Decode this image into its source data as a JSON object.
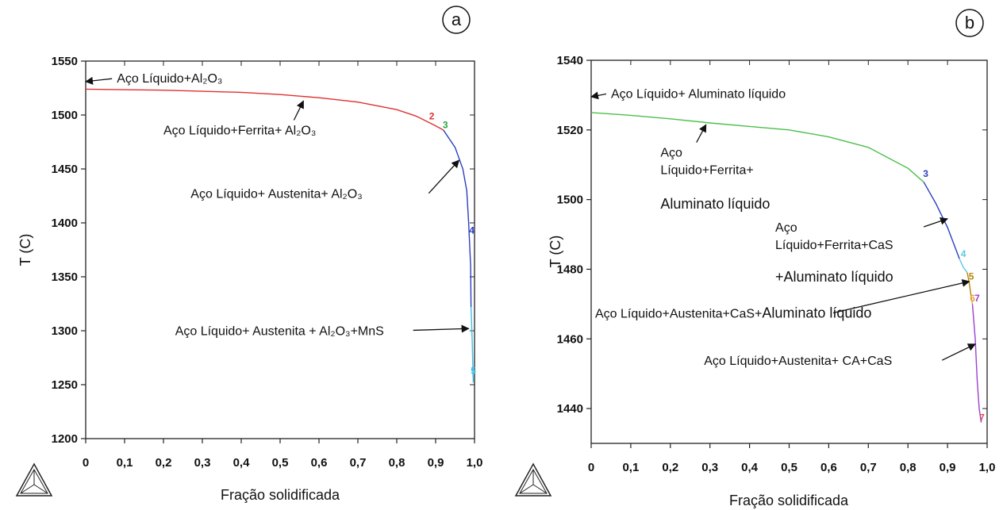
{
  "chart_data": [
    {
      "type": "line",
      "badge": "a",
      "xlabel": "Fração solidificada",
      "ylabel": "T (C)",
      "xlim": [
        0,
        1.0
      ],
      "ylim": [
        1200,
        1550
      ],
      "xticks": [
        "0",
        "0,1",
        "0,2",
        "0,3",
        "0,4",
        "0,5",
        "0,6",
        "0,7",
        "0,8",
        "0,9",
        "1,0"
      ],
      "yticks": [
        1200,
        1250,
        1300,
        1350,
        1400,
        1450,
        1500,
        1550
      ],
      "series": [
        {
          "color": "#e03030",
          "x": [
            0,
            0.2,
            0.4,
            0.5,
            0.6,
            0.7,
            0.8,
            0.85,
            0.9,
            0.92
          ],
          "y": [
            1524,
            1523,
            1521,
            1519,
            1516,
            1512,
            1505,
            1499,
            1490,
            1486
          ]
        },
        {
          "color": "#2a3fbf",
          "x": [
            0.92,
            0.95,
            0.97,
            0.98,
            0.985,
            0.99,
            0.991
          ],
          "y": [
            1486,
            1470,
            1450,
            1430,
            1400,
            1360,
            1322
          ]
        },
        {
          "color": "#3bbfe8",
          "x": [
            0.991,
            0.994,
            0.996,
            0.997
          ],
          "y": [
            1322,
            1290,
            1262,
            1252
          ]
        }
      ],
      "points": [
        {
          "label": "2",
          "x": 0.89,
          "y": 1496,
          "color": "#e03030"
        },
        {
          "label": "3",
          "x": 0.925,
          "y": 1488,
          "color": "#2ea043"
        },
        {
          "label": "4",
          "x": 0.993,
          "y": 1390,
          "color": "#2a3fbf"
        },
        {
          "label": "5",
          "x": 0.997,
          "y": 1260,
          "color": "#3bbfe8"
        }
      ],
      "annotations": [
        {
          "text": "Aço Líquido+Al₂O₃",
          "tx": 0.08,
          "ty": 1530,
          "ax": 0.0,
          "ay": 1531
        },
        {
          "text": "Aço Líquido+Ferrita+ Al₂O₃",
          "tx": 0.2,
          "ty": 1482,
          "ax": 0.56,
          "ay": 1513
        },
        {
          "text": "Aço Líquido+ Austenita+ Al₂O₃",
          "tx": 0.27,
          "ty": 1423,
          "ax": 0.96,
          "ay": 1458
        },
        {
          "text": "Aço Líquido+ Austenita + Al₂O₃+MnS",
          "tx": 0.23,
          "ty": 1296,
          "ax": 0.985,
          "ay": 1302
        }
      ]
    },
    {
      "type": "line",
      "badge": "b",
      "xlabel": "Fração solidificada",
      "ylabel": "T (C)",
      "xlim": [
        0,
        1.0
      ],
      "ylim": [
        1430,
        1540
      ],
      "xticks": [
        "0",
        "0,1",
        "0,2",
        "0,3",
        "0,4",
        "0,5",
        "0,6",
        "0,7",
        "0,8",
        "0,9",
        "1,0"
      ],
      "yticks": [
        1440,
        1460,
        1480,
        1500,
        1520,
        1540
      ],
      "series": [
        {
          "color": "#4cbf4c",
          "x": [
            0,
            0.1,
            0.2,
            0.3,
            0.4,
            0.5,
            0.6,
            0.7,
            0.8,
            0.84
          ],
          "y": [
            1525,
            1524.2,
            1523.2,
            1522,
            1521,
            1520,
            1518,
            1515,
            1509,
            1505
          ]
        },
        {
          "color": "#2a3fbf",
          "x": [
            0.84,
            0.87,
            0.9,
            0.92,
            0.93
          ],
          "y": [
            1505,
            1499,
            1492,
            1486,
            1483
          ]
        },
        {
          "color": "#5bc8e6",
          "x": [
            0.93,
            0.94,
            0.95
          ],
          "y": [
            1483,
            1480.5,
            1479
          ]
        },
        {
          "color": "#b8860b",
          "x": [
            0.95,
            0.955,
            0.96
          ],
          "y": [
            1479,
            1476,
            1472
          ]
        },
        {
          "color": "#e8a040",
          "x": [
            0.96,
            0.963
          ],
          "y": [
            1472,
            1470
          ]
        },
        {
          "color": "#9b3fd0",
          "x": [
            0.963,
            0.97,
            0.975,
            0.98,
            0.985
          ],
          "y": [
            1470,
            1460,
            1448,
            1440,
            1436
          ]
        }
      ],
      "points": [
        {
          "label": "3",
          "x": 0.845,
          "y": 1506.5,
          "color": "#2a3fbf"
        },
        {
          "label": "4",
          "x": 0.94,
          "y": 1483.5,
          "color": "#5bc8e6"
        },
        {
          "label": "5",
          "x": 0.96,
          "y": 1477,
          "color": "#b8860b"
        },
        {
          "label": "6",
          "x": 0.963,
          "y": 1470.8,
          "color": "#e8a040"
        },
        {
          "label": "7",
          "x": 0.975,
          "y": 1470.8,
          "color": "#9b3fd0"
        },
        {
          "label": "7",
          "x": 0.987,
          "y": 1436.5,
          "color": "#e05050"
        }
      ],
      "annotations": [
        {
          "lines": [
            "Aço Líquido+ Aluminato líquido"
          ],
          "tx": 0.05,
          "ty": 1529.2,
          "ax": 0.0,
          "ay": 1529.5
        },
        {
          "lines": [
            "Aço",
            "Líquido+Ferrita+"
          ],
          "tx": 0.175,
          "ty": 1512.3,
          "ax": 0.29,
          "ay": 1521.5
        },
        {
          "lines": [
            "Aluminato líquido"
          ],
          "tx": 0.175,
          "ty": 1497.4,
          "large": true
        },
        {
          "lines": [
            "Aço",
            "Líquido+Ferrita+CaS"
          ],
          "tx": 0.465,
          "ty": 1490.8,
          "ax": 0.9,
          "ay": 1494.5
        },
        {
          "lines": [
            "+Aluminato líquido"
          ],
          "tx": 0.465,
          "ty": 1476.5,
          "large": true
        },
        {
          "lines": [
            "Aço Líquido+Austenita+CaS+"
          ],
          "tx": 0.01,
          "ty": 1466.1,
          "ax": 0.955,
          "ay": 1476.5,
          "append": "Aluminato líquido"
        },
        {
          "lines": [
            "Aço Líquido+Austenita+ CA+CaS"
          ],
          "tx": 0.285,
          "ty": 1452.5,
          "ax": 0.97,
          "ay": 1458.5
        }
      ]
    }
  ]
}
